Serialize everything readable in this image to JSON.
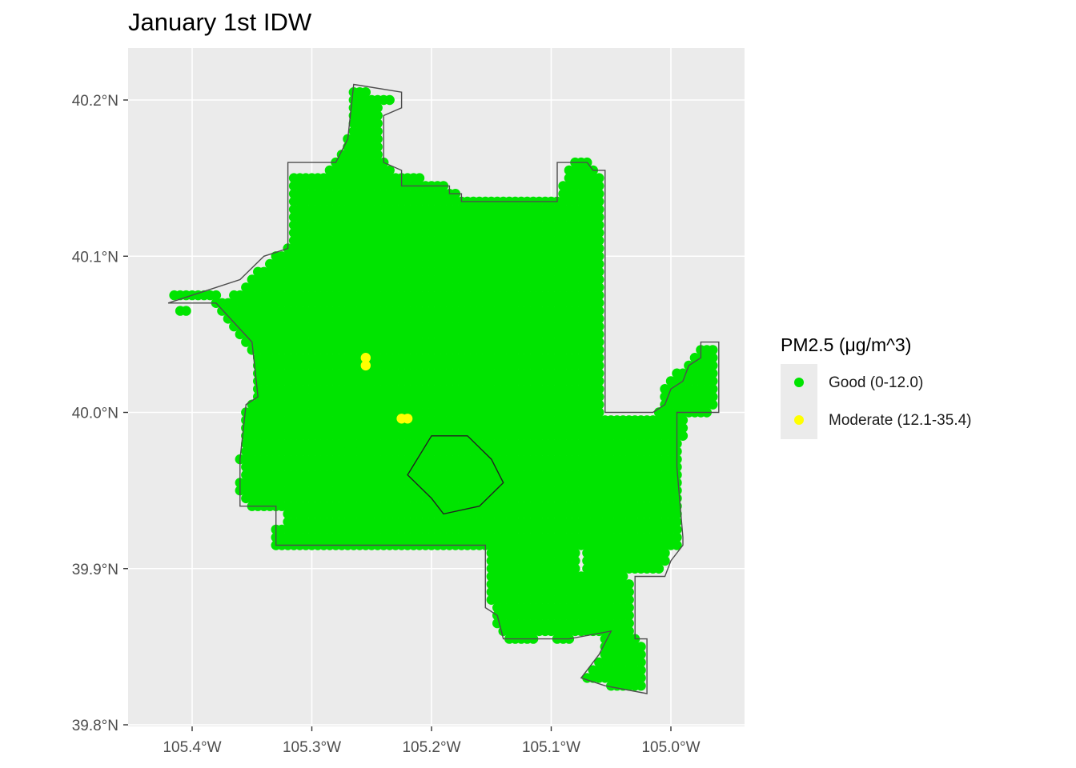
{
  "chart_data": {
    "type": "scatter",
    "title": "January 1st IDW",
    "x_ticks": [
      "105.4°W",
      "105.3°W",
      "105.2°W",
      "105.1°W",
      "105.0°W"
    ],
    "x_tick_values": [
      -105.4,
      -105.3,
      -105.2,
      -105.1,
      -105.0
    ],
    "y_ticks": [
      "39.8°N",
      "39.9°N",
      "40.0°N",
      "40.1°N",
      "40.2°N"
    ],
    "y_tick_values": [
      39.8,
      39.9,
      40.0,
      40.1,
      40.2
    ],
    "xlim": [
      -105.45,
      -104.96
    ],
    "ylim": [
      39.8,
      40.23
    ],
    "grid": true,
    "legend_position": "right",
    "grid_spacing": 0.005,
    "legend": {
      "title": "PM2.5 (μg/m^3)",
      "items": [
        {
          "label": "Good (0-12.0)",
          "color": "#00e400"
        },
        {
          "label": "Moderate (12.1-35.4)",
          "color": "#ffff00"
        }
      ]
    },
    "series": [
      {
        "name": "Good (0-12.0)",
        "color": "#00e400",
        "lat_rows": [
          {
            "lat": 40.205,
            "lon_ranges": [
              [
                -105.265,
                -105.255
              ]
            ]
          },
          {
            "lat": 40.2,
            "lon_ranges": [
              [
                -105.265,
                -105.235
              ]
            ]
          },
          {
            "lat": 40.195,
            "lon_ranges": [
              [
                -105.265,
                -105.245
              ]
            ]
          },
          {
            "lat": 40.19,
            "lon_ranges": [
              [
                -105.265,
                -105.245
              ]
            ]
          },
          {
            "lat": 40.185,
            "lon_ranges": [
              [
                -105.265,
                -105.245
              ]
            ]
          },
          {
            "lat": 40.18,
            "lon_ranges": [
              [
                -105.265,
                -105.245
              ]
            ]
          },
          {
            "lat": 40.175,
            "lon_ranges": [
              [
                -105.27,
                -105.245
              ]
            ]
          },
          {
            "lat": 40.17,
            "lon_ranges": [
              [
                -105.27,
                -105.245
              ]
            ]
          },
          {
            "lat": 40.165,
            "lon_ranges": [
              [
                -105.275,
                -105.245
              ]
            ]
          },
          {
            "lat": 40.16,
            "lon_ranges": [
              [
                -105.28,
                -105.24
              ],
              [
                -105.08,
                -105.07
              ]
            ]
          },
          {
            "lat": 40.155,
            "lon_ranges": [
              [
                -105.285,
                -105.235
              ],
              [
                -105.085,
                -105.065
              ]
            ]
          },
          {
            "lat": 40.15,
            "lon_ranges": [
              [
                -105.315,
                -105.21
              ],
              [
                -105.085,
                -105.06
              ]
            ]
          },
          {
            "lat": 40.145,
            "lon_ranges": [
              [
                -105.315,
                -105.19
              ],
              [
                -105.09,
                -105.06
              ]
            ]
          },
          {
            "lat": 40.14,
            "lon_ranges": [
              [
                -105.315,
                -105.18
              ],
              [
                -105.09,
                -105.06
              ]
            ]
          },
          {
            "lat": 40.135,
            "lon_ranges": [
              [
                -105.315,
                -105.06
              ]
            ]
          },
          {
            "lat": 40.13,
            "lon_ranges": [
              [
                -105.315,
                -105.06
              ]
            ]
          },
          {
            "lat": 40.125,
            "lon_ranges": [
              [
                -105.315,
                -105.06
              ]
            ]
          },
          {
            "lat": 40.12,
            "lon_ranges": [
              [
                -105.315,
                -105.06
              ]
            ]
          },
          {
            "lat": 40.115,
            "lon_ranges": [
              [
                -105.315,
                -105.06
              ]
            ]
          },
          {
            "lat": 40.11,
            "lon_ranges": [
              [
                -105.315,
                -105.06
              ]
            ]
          },
          {
            "lat": 40.105,
            "lon_ranges": [
              [
                -105.32,
                -105.06
              ]
            ]
          },
          {
            "lat": 40.1,
            "lon_ranges": [
              [
                -105.33,
                -105.06
              ]
            ]
          },
          {
            "lat": 40.095,
            "lon_ranges": [
              [
                -105.335,
                -105.06
              ]
            ]
          },
          {
            "lat": 40.09,
            "lon_ranges": [
              [
                -105.345,
                -105.06
              ]
            ]
          },
          {
            "lat": 40.085,
            "lon_ranges": [
              [
                -105.35,
                -105.06
              ]
            ]
          },
          {
            "lat": 40.08,
            "lon_ranges": [
              [
                -105.355,
                -105.06
              ]
            ]
          },
          {
            "lat": 40.075,
            "lon_ranges": [
              [
                -105.415,
                -105.38
              ],
              [
                -105.365,
                -105.06
              ]
            ]
          },
          {
            "lat": 40.07,
            "lon_ranges": [
              [
                -105.38,
                -105.06
              ]
            ]
          },
          {
            "lat": 40.065,
            "lon_ranges": [
              [
                -105.41,
                -105.405
              ],
              [
                -105.375,
                -105.06
              ]
            ]
          },
          {
            "lat": 40.06,
            "lon_ranges": [
              [
                -105.37,
                -105.06
              ]
            ]
          },
          {
            "lat": 40.055,
            "lon_ranges": [
              [
                -105.365,
                -105.06
              ]
            ]
          },
          {
            "lat": 40.05,
            "lon_ranges": [
              [
                -105.36,
                -105.06
              ]
            ]
          },
          {
            "lat": 40.045,
            "lon_ranges": [
              [
                -105.355,
                -105.06
              ]
            ]
          },
          {
            "lat": 40.04,
            "lon_ranges": [
              [
                -105.35,
                -105.06
              ],
              [
                -104.975,
                -104.965
              ]
            ]
          },
          {
            "lat": 40.035,
            "lon_ranges": [
              [
                -105.345,
                -105.06
              ],
              [
                -104.98,
                -104.965
              ]
            ]
          },
          {
            "lat": 40.03,
            "lon_ranges": [
              [
                -105.345,
                -105.06
              ],
              [
                -104.985,
                -104.965
              ]
            ]
          },
          {
            "lat": 40.025,
            "lon_ranges": [
              [
                -105.345,
                -105.06
              ],
              [
                -104.995,
                -104.965
              ]
            ]
          },
          {
            "lat": 40.02,
            "lon_ranges": [
              [
                -105.345,
                -105.06
              ],
              [
                -105.0,
                -104.965
              ]
            ]
          },
          {
            "lat": 40.015,
            "lon_ranges": [
              [
                -105.345,
                -105.06
              ],
              [
                -105.005,
                -104.965
              ]
            ]
          },
          {
            "lat": 40.01,
            "lon_ranges": [
              [
                -105.345,
                -105.06
              ],
              [
                -105.005,
                -104.965
              ]
            ]
          },
          {
            "lat": 40.005,
            "lon_ranges": [
              [
                -105.35,
                -105.06
              ],
              [
                -105.005,
                -104.965
              ]
            ]
          },
          {
            "lat": 40.0,
            "lon_ranges": [
              [
                -105.355,
                -105.06
              ],
              [
                -105.01,
                -104.97
              ]
            ]
          },
          {
            "lat": 39.995,
            "lon_ranges": [
              [
                -105.355,
                -104.99
              ]
            ]
          },
          {
            "lat": 39.99,
            "lon_ranges": [
              [
                -105.355,
                -104.99
              ]
            ]
          },
          {
            "lat": 39.985,
            "lon_ranges": [
              [
                -105.355,
                -104.99
              ]
            ]
          },
          {
            "lat": 39.98,
            "lon_ranges": [
              [
                -105.355,
                -104.995
              ]
            ]
          },
          {
            "lat": 39.975,
            "lon_ranges": [
              [
                -105.355,
                -104.995
              ]
            ]
          },
          {
            "lat": 39.97,
            "lon_ranges": [
              [
                -105.36,
                -104.995
              ]
            ]
          },
          {
            "lat": 39.965,
            "lon_ranges": [
              [
                -105.355,
                -104.995
              ]
            ]
          },
          {
            "lat": 39.96,
            "lon_ranges": [
              [
                -105.355,
                -104.995
              ]
            ]
          },
          {
            "lat": 39.955,
            "lon_ranges": [
              [
                -105.36,
                -104.995
              ]
            ]
          },
          {
            "lat": 39.95,
            "lon_ranges": [
              [
                -105.36,
                -104.995
              ]
            ]
          },
          {
            "lat": 39.945,
            "lon_ranges": [
              [
                -105.355,
                -104.995
              ]
            ]
          },
          {
            "lat": 39.94,
            "lon_ranges": [
              [
                -105.35,
                -104.995
              ]
            ]
          },
          {
            "lat": 39.935,
            "lon_ranges": [
              [
                -105.32,
                -104.995
              ]
            ]
          },
          {
            "lat": 39.93,
            "lon_ranges": [
              [
                -105.32,
                -104.995
              ]
            ]
          },
          {
            "lat": 39.925,
            "lon_ranges": [
              [
                -105.33,
                -104.995
              ]
            ]
          },
          {
            "lat": 39.92,
            "lon_ranges": [
              [
                -105.33,
                -104.995
              ]
            ]
          },
          {
            "lat": 39.915,
            "lon_ranges": [
              [
                -105.33,
                -104.995
              ]
            ]
          },
          {
            "lat": 39.91,
            "lon_ranges": [
              [
                -105.15,
                -105.08
              ],
              [
                -105.07,
                -105.005
              ]
            ]
          },
          {
            "lat": 39.905,
            "lon_ranges": [
              [
                -105.15,
                -105.08
              ],
              [
                -105.07,
                -105.005
              ]
            ]
          },
          {
            "lat": 39.9,
            "lon_ranges": [
              [
                -105.15,
                -105.08
              ],
              [
                -105.07,
                -105.01
              ]
            ]
          },
          {
            "lat": 39.895,
            "lon_ranges": [
              [
                -105.15,
                -105.04
              ]
            ]
          },
          {
            "lat": 39.89,
            "lon_ranges": [
              [
                -105.15,
                -105.035
              ]
            ]
          },
          {
            "lat": 39.885,
            "lon_ranges": [
              [
                -105.15,
                -105.035
              ]
            ]
          },
          {
            "lat": 39.88,
            "lon_ranges": [
              [
                -105.15,
                -105.035
              ]
            ]
          },
          {
            "lat": 39.875,
            "lon_ranges": [
              [
                -105.145,
                -105.035
              ]
            ]
          },
          {
            "lat": 39.87,
            "lon_ranges": [
              [
                -105.145,
                -105.035
              ]
            ]
          },
          {
            "lat": 39.865,
            "lon_ranges": [
              [
                -105.145,
                -105.035
              ]
            ]
          },
          {
            "lat": 39.86,
            "lon_ranges": [
              [
                -105.14,
                -105.035
              ]
            ]
          },
          {
            "lat": 39.855,
            "lon_ranges": [
              [
                -105.135,
                -105.115
              ],
              [
                -105.095,
                -105.085
              ],
              [
                -105.055,
                -105.03
              ]
            ]
          },
          {
            "lat": 39.85,
            "lon_ranges": [
              [
                -105.055,
                -105.025
              ]
            ]
          },
          {
            "lat": 39.845,
            "lon_ranges": [
              [
                -105.055,
                -105.025
              ]
            ]
          },
          {
            "lat": 39.84,
            "lon_ranges": [
              [
                -105.06,
                -105.025
              ]
            ]
          },
          {
            "lat": 39.835,
            "lon_ranges": [
              [
                -105.065,
                -105.025
              ]
            ]
          },
          {
            "lat": 39.83,
            "lon_ranges": [
              [
                -105.07,
                -105.025
              ]
            ]
          },
          {
            "lat": 39.825,
            "lon_ranges": [
              [
                -105.05,
                -105.025
              ]
            ]
          }
        ]
      },
      {
        "name": "Moderate (12.1-35.4)",
        "color": "#ffff00",
        "points": [
          {
            "lon": -105.255,
            "lat": 40.035
          },
          {
            "lon": -105.255,
            "lat": 40.03
          },
          {
            "lon": -105.225,
            "lat": 39.996
          },
          {
            "lon": -105.22,
            "lat": 39.996
          }
        ]
      }
    ],
    "colors": {
      "panel": "#ebebeb",
      "grid": "#ffffff",
      "boundary": "#4d4d4d",
      "axis_text": "#4d4d4d"
    }
  }
}
